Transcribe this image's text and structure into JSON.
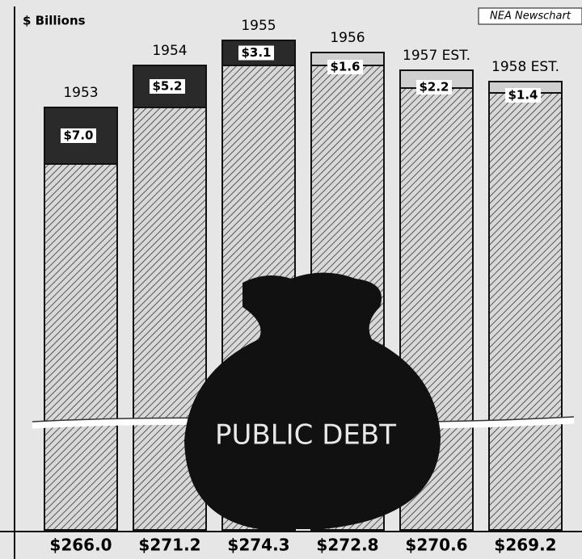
{
  "chart_data": {
    "type": "bar",
    "unit_label": "$ Billions",
    "credit": "NEA Newschart",
    "annotation": "PUBLIC DEBT",
    "categories": [
      "1953",
      "1954",
      "1955",
      "1956",
      "1957 EST.",
      "1958 EST."
    ],
    "values": [
      266.0,
      271.2,
      274.3,
      272.8,
      270.6,
      269.2
    ],
    "value_labels": [
      "$266.0",
      "$271.2",
      "$274.3",
      "$272.8",
      "$270.6",
      "$269.2"
    ],
    "segment_values": [
      7.0,
      5.2,
      3.1,
      1.6,
      2.2,
      1.4
    ],
    "segment_value_labels": [
      "$7.0",
      "$5.2",
      "$3.1",
      "$1.6",
      "$2.2",
      "$1.4"
    ],
    "segment_colors": [
      "#2a2a2a",
      "#2a2a2a",
      "#2a2a2a",
      "#cfcfcf",
      "#cfcfcf",
      "#cfcfcf"
    ],
    "axis_break": true
  }
}
